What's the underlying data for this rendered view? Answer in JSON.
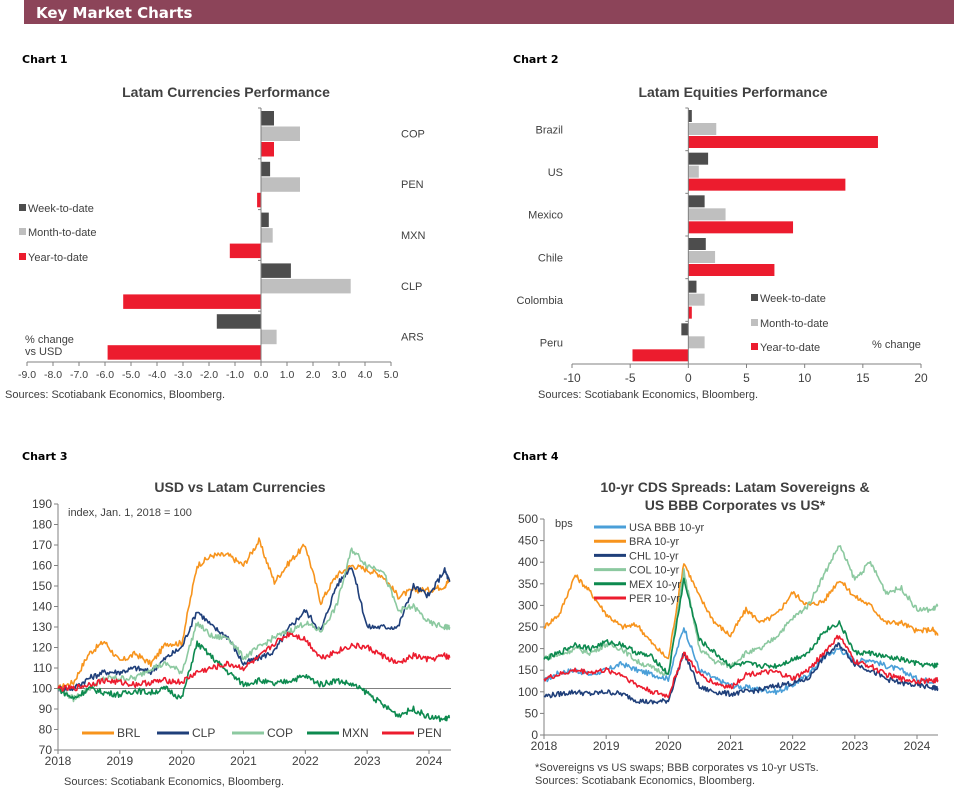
{
  "header": {
    "title": "Key Market Charts",
    "color": "#8C4459"
  },
  "labels": {
    "chart1": "Chart 1",
    "chart2": "Chart 2",
    "chart3": "Chart 3",
    "chart4": "Chart 4"
  },
  "colors": {
    "week": "#4D4D4D",
    "month": "#BFBFBF",
    "year": "#EC1C2E"
  },
  "chart_data": [
    {
      "type": "bar",
      "orientation": "horizontal",
      "title": "Latam Currencies Performance",
      "note": [
        "% change",
        "vs USD"
      ],
      "categories": [
        "COP",
        "PEN",
        "MXN",
        "CLP",
        "ARS"
      ],
      "series": [
        {
          "name": "Week-to-date",
          "values": [
            0.5,
            0.35,
            0.3,
            1.15,
            -1.7
          ]
        },
        {
          "name": "Month-to-date",
          "values": [
            1.5,
            1.5,
            0.45,
            3.45,
            0.6
          ]
        },
        {
          "name": "Year-to-date",
          "values": [
            0.5,
            -0.15,
            -1.2,
            -5.3,
            -5.9
          ]
        }
      ],
      "xlim": [
        -9,
        5
      ],
      "xticks": [
        "-9.0",
        "-8.0",
        "-7.0",
        "-6.0",
        "-5.0",
        "-4.0",
        "-3.0",
        "-2.0",
        "-1.0",
        "0.0",
        "1.0",
        "2.0",
        "3.0",
        "4.0",
        "5.0"
      ],
      "legend": "left",
      "source": "Sources: Scotiabank Economics, Bloomberg."
    },
    {
      "type": "bar",
      "orientation": "horizontal",
      "title": "Latam Equities Performance",
      "note": [
        "% change"
      ],
      "categories": [
        "Brazil",
        "US",
        "Mexico",
        "Chile",
        "Colombia",
        "Peru"
      ],
      "series": [
        {
          "name": "Week-to-date",
          "values": [
            0.3,
            1.7,
            1.4,
            1.5,
            0.7,
            -0.6
          ]
        },
        {
          "name": "Month-to-date",
          "values": [
            2.4,
            0.9,
            3.2,
            2.3,
            1.4,
            1.4
          ]
        },
        {
          "name": "Year-to-date",
          "values": [
            16.3,
            13.5,
            9.0,
            7.4,
            0.3,
            -4.8
          ]
        }
      ],
      "xlim": [
        -10,
        20
      ],
      "xticks": [
        "-10",
        "-5",
        "0",
        "5",
        "10",
        "15",
        "20"
      ],
      "legend": "bottom-right",
      "source": "Sources: Scotiabank Economics, Bloomberg."
    },
    {
      "type": "line",
      "title": "USD vs Latam Currencies",
      "note": "index, Jan. 1, 2018 = 100",
      "ylim": [
        70,
        190
      ],
      "yticks": [
        "70",
        "80",
        "90",
        "100",
        "110",
        "120",
        "130",
        "140",
        "150",
        "160",
        "170",
        "180",
        "190"
      ],
      "xticks": [
        "2018",
        "2019",
        "2020",
        "2021",
        "2022",
        "2023",
        "2024"
      ],
      "reference_line": 100,
      "x": [
        "2018-01",
        "2018-04",
        "2018-07",
        "2018-10",
        "2019-01",
        "2019-04",
        "2019-07",
        "2019-10",
        "2020-01",
        "2020-04",
        "2020-07",
        "2020-10",
        "2021-01",
        "2021-04",
        "2021-07",
        "2021-10",
        "2022-01",
        "2022-04",
        "2022-07",
        "2022-10",
        "2023-01",
        "2023-04",
        "2023-07",
        "2023-10",
        "2024-01",
        "2024-04",
        "2024-05"
      ],
      "series": [
        {
          "name": "BRL",
          "color": "#F7941D",
          "values": [
            100,
            103,
            117,
            123,
            113,
            117,
            112,
            122,
            122,
            160,
            165,
            165,
            160,
            172,
            152,
            162,
            170,
            142,
            155,
            160,
            158,
            155,
            145,
            148,
            148,
            150,
            153
          ]
        },
        {
          "name": "CLP",
          "color": "#1F3F7A",
          "values": [
            100,
            100,
            105,
            108,
            108,
            110,
            108,
            115,
            120,
            138,
            130,
            125,
            112,
            115,
            118,
            130,
            138,
            128,
            150,
            160,
            130,
            130,
            130,
            150,
            145,
            158,
            152
          ]
        },
        {
          "name": "COP",
          "color": "#8CC9A0",
          "values": [
            100,
            95,
            100,
            105,
            105,
            105,
            110,
            112,
            108,
            132,
            125,
            125,
            115,
            120,
            125,
            128,
            132,
            128,
            140,
            168,
            160,
            158,
            138,
            140,
            132,
            130,
            130
          ]
        },
        {
          "name": "MXN",
          "color": "#0D8A4F",
          "values": [
            100,
            95,
            100,
            98,
            97,
            99,
            98,
            100,
            95,
            122,
            115,
            108,
            102,
            104,
            102,
            104,
            106,
            102,
            104,
            102,
            98,
            92,
            87,
            90,
            86,
            85,
            86
          ]
        },
        {
          "name": "PEN",
          "color": "#EC1C2E",
          "values": [
            100,
            100,
            102,
            104,
            103,
            102,
            103,
            104,
            103,
            108,
            110,
            112,
            110,
            115,
            122,
            127,
            124,
            115,
            118,
            121,
            120,
            116,
            112,
            116,
            114,
            116,
            115
          ]
        }
      ],
      "legend": "bottom",
      "source": "Sources: Scotiabank Economics, Bloomberg."
    },
    {
      "type": "line",
      "title": [
        "10-yr CDS Spreads: Latam Sovereigns &",
        "US BBB Corporates vs US*"
      ],
      "ylabel": "bps",
      "ylim": [
        0,
        500
      ],
      "yticks": [
        "0",
        "50",
        "100",
        "150",
        "200",
        "250",
        "300",
        "350",
        "400",
        "450",
        "500"
      ],
      "xticks": [
        "2018",
        "2019",
        "2020",
        "2021",
        "2022",
        "2023",
        "2024"
      ],
      "x": [
        "2018-01",
        "2018-04",
        "2018-07",
        "2018-10",
        "2019-01",
        "2019-04",
        "2019-07",
        "2019-10",
        "2020-01",
        "2020-04",
        "2020-07",
        "2020-10",
        "2021-01",
        "2021-04",
        "2021-07",
        "2021-10",
        "2022-01",
        "2022-04",
        "2022-07",
        "2022-10",
        "2023-01",
        "2023-04",
        "2023-07",
        "2023-10",
        "2024-01",
        "2024-04",
        "2024-05"
      ],
      "series": [
        {
          "name": "USA BBB 10-yr",
          "color": "#4A9FD8",
          "values": [
            125,
            145,
            150,
            140,
            150,
            165,
            150,
            140,
            130,
            250,
            150,
            130,
            115,
            110,
            105,
            100,
            115,
            140,
            180,
            200,
            170,
            175,
            160,
            150,
            130,
            125,
            128
          ]
        },
        {
          "name": "BRA 10-yr",
          "color": "#F7941D",
          "values": [
            250,
            280,
            370,
            330,
            280,
            250,
            255,
            210,
            175,
            400,
            320,
            260,
            230,
            290,
            260,
            280,
            330,
            300,
            310,
            360,
            320,
            300,
            260,
            260,
            240,
            245,
            230
          ]
        },
        {
          "name": "CHL 10-yr",
          "color": "#1F3F7A",
          "values": [
            90,
            95,
            100,
            95,
            100,
            95,
            80,
            75,
            80,
            190,
            110,
            100,
            95,
            100,
            105,
            115,
            120,
            130,
            180,
            210,
            165,
            150,
            130,
            120,
            115,
            110,
            108
          ]
        },
        {
          "name": "COL 10-yr",
          "color": "#8CC9A0",
          "values": [
            180,
            185,
            200,
            190,
            210,
            200,
            170,
            155,
            140,
            380,
            200,
            170,
            160,
            190,
            200,
            230,
            270,
            300,
            370,
            440,
            360,
            400,
            330,
            340,
            290,
            290,
            300
          ]
        },
        {
          "name": "MEX 10-yr",
          "color": "#0D8A4F",
          "values": [
            175,
            190,
            210,
            200,
            215,
            210,
            190,
            180,
            140,
            360,
            220,
            190,
            160,
            165,
            160,
            160,
            175,
            190,
            240,
            260,
            190,
            190,
            180,
            175,
            165,
            160,
            162
          ]
        },
        {
          "name": "PER 10-yr",
          "color": "#EC1C2E",
          "values": [
            130,
            140,
            150,
            145,
            150,
            140,
            115,
            100,
            90,
            190,
            140,
            120,
            110,
            140,
            145,
            145,
            130,
            150,
            190,
            230,
            170,
            160,
            140,
            130,
            125,
            125,
            128
          ]
        }
      ],
      "legend": "top-left",
      "footnote": "*Sovereigns vs US swaps; BBB corporates vs 10-yr USTs.",
      "source": "Sources: Scotiabank Economics, Bloomberg."
    }
  ]
}
